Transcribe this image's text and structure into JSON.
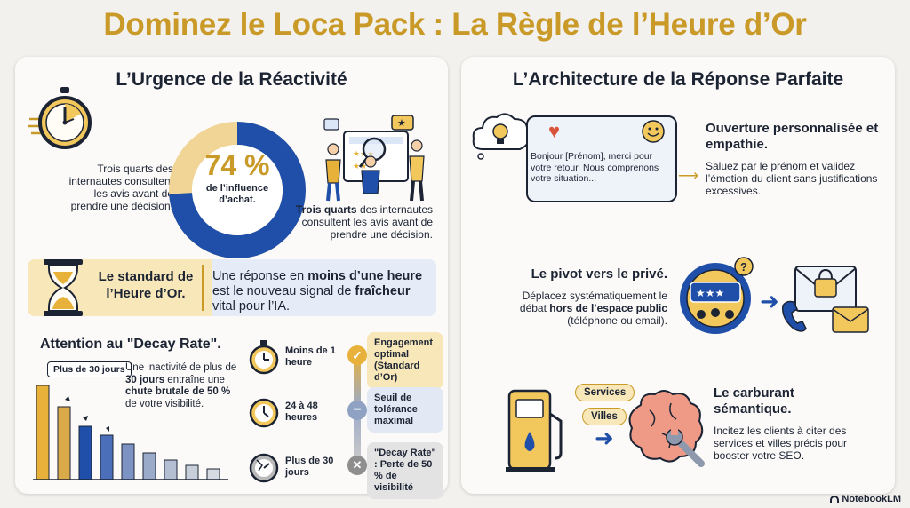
{
  "title": "Dominez le Loca Pack : La Règle de l’Heure d’Or",
  "left": {
    "title": "L’Urgence de la Réactivité",
    "stat": {
      "value": "74 %",
      "value_fraction": 0.74,
      "caption": "de l’influence d’achat."
    },
    "stat_left_text": "Trois quarts des internautes consultent les avis avant de prendre une décision.",
    "stat_right_bold": "Trois quarts",
    "stat_right_rest": " des internautes consultent les avis avant de prendre une décision.",
    "gold_label": "Le standard de l’Heure d’Or.",
    "gold_text_1": "Une réponse en ",
    "gold_text_b1": "moins d’une heure",
    "gold_text_2": " est le nouveau signal de ",
    "gold_text_b2": "fraîcheur",
    "gold_text_3": " vital pour l’IA.",
    "decay_title": "Attention au \"Decay Rate\".",
    "decay_badge": "Plus de 30 jours",
    "decay_text_1": "Une inactivité de plus de ",
    "decay_text_b1": "30 jours",
    "decay_text_2": " entraîne une ",
    "decay_text_b2": "chute brutale de 50 %",
    "decay_text_3": " de votre visibilité.",
    "timeline": [
      {
        "time": "Moins de 1 heure",
        "status": "Engagement optimal (Standard d’Or)"
      },
      {
        "time": "24 à 48 heures",
        "status": "Seuil de tolérance maximal"
      },
      {
        "time": "Plus de 30 jours",
        "status": "\"Decay Rate\" : Perte de 50 % de visibilité"
      }
    ]
  },
  "right": {
    "title": "L’Architecture de la Réponse Parfaite",
    "bubble_text": "Bonjour [Prénom], merci pour votre retour. Nous comprenons votre situation...",
    "s1_title": "Ouverture personnalisée et empathie.",
    "s1_text": "Saluez par le prénom et validez l’émotion du client sans justifications excessives.",
    "s2_title": "Le pivot vers le privé.",
    "s2_text_1": "Déplacez systématiquement le débat ",
    "s2_text_b": "hors de l’espace public",
    "s2_text_2": " (téléphone ou email).",
    "s3_tag1": "Services",
    "s3_tag2": "Villes",
    "s3_title": "Le carburant sémantique.",
    "s3_text": "Incitez les clients à citer des services et villes précis pour booster votre SEO."
  },
  "brand": "NotebookLM",
  "colors": {
    "gold": "#c99a27",
    "blue": "#1f4fa8",
    "navy": "#1c2434"
  }
}
